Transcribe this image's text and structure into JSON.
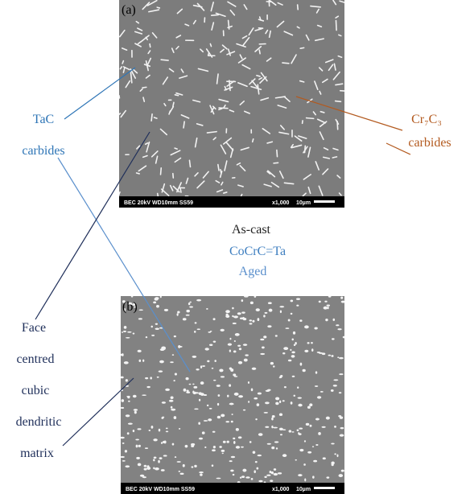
{
  "panel_a": {
    "label": "(a)",
    "scalebar": {
      "info": "BEC 20kV  WD10mm SS59",
      "magnification": "x1,000",
      "scale": "10µm"
    }
  },
  "panel_b": {
    "label": "(b)",
    "scalebar": {
      "info": "BEC 20kV  WD10mm SS59",
      "magnification": "x1,000",
      "scale": "10µm"
    }
  },
  "center_labels": {
    "top": "As-cast",
    "middle": "CoCrC=Ta",
    "bottom": "Aged"
  },
  "tac_label": [
    "TaC",
    "carbides"
  ],
  "cr_label": [
    "Cr₇C₃",
    "carbides"
  ],
  "matrix_label": [
    "Face",
    "centred",
    "cubic",
    "dendritic",
    "matrix"
  ]
}
